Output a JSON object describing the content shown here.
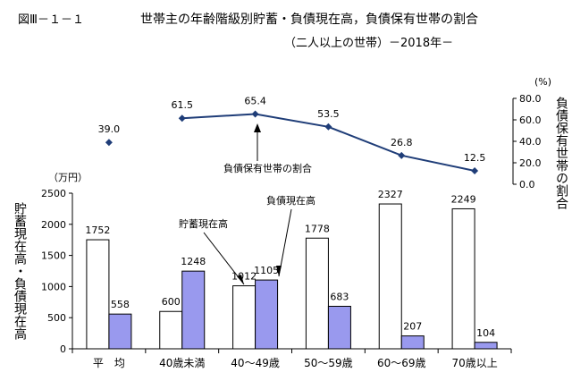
{
  "header": {
    "figure_label": "図Ⅲ－１－１",
    "title": "世帯主の年齢階級別貯蓄・負債現在高，負債保有世帯の割合",
    "subtitle": "（二人以上の世帯）－2018年－"
  },
  "colors": {
    "savings_bar": "#ffffff",
    "debt_bar": "#9999ee",
    "line": "#1f3d78",
    "axis": "#000000"
  },
  "chart_data": [
    {
      "type": "bar",
      "title": "貯蓄現在高・負債現在高",
      "ylabel": "貯蓄現在高・負債現在高",
      "yunit": "（万円）",
      "ylim": [
        0,
        2500
      ],
      "yticks": [
        "0",
        "500",
        "1000",
        "1500",
        "2000",
        "2500"
      ],
      "categories": [
        "平　均",
        "40歳未満",
        "40～49歳",
        "50～59歳",
        "60～69歳",
        "70歳以上"
      ],
      "series": [
        {
          "name": "貯蓄現在高",
          "values": [
            1752,
            600,
            1012,
            1778,
            2327,
            2249
          ],
          "labels": [
            "1752",
            "600",
            "1012",
            "1778",
            "2327",
            "2249"
          ]
        },
        {
          "name": "負債現在高",
          "values": [
            558,
            1248,
            1105,
            683,
            207,
            104
          ],
          "labels": [
            "558",
            "1248",
            "1105",
            "683",
            "207",
            "104"
          ]
        }
      ]
    },
    {
      "type": "line",
      "title": "負債保有世帯の割合",
      "ylabel": "負債保有世帯の割合",
      "yunit": "(%)",
      "ylim": [
        0,
        80
      ],
      "yticks": [
        "0.0",
        "20.0",
        "40.0",
        "60.0",
        "80.0"
      ],
      "categories": [
        "平　均",
        "40歳未満",
        "40～49歳",
        "50～59歳",
        "60～69歳",
        "70歳以上"
      ],
      "values": [
        39.0,
        61.5,
        65.4,
        53.5,
        26.8,
        12.5
      ],
      "labels": [
        "39.0",
        "61.5",
        "65.4",
        "53.5",
        "26.8",
        "12.5"
      ],
      "connected_from_index": 1
    }
  ],
  "annotations": {
    "savings_label": "貯蓄現在高",
    "debt_label": "負債現在高",
    "ratio_label": "負債保有世帯の割合"
  }
}
